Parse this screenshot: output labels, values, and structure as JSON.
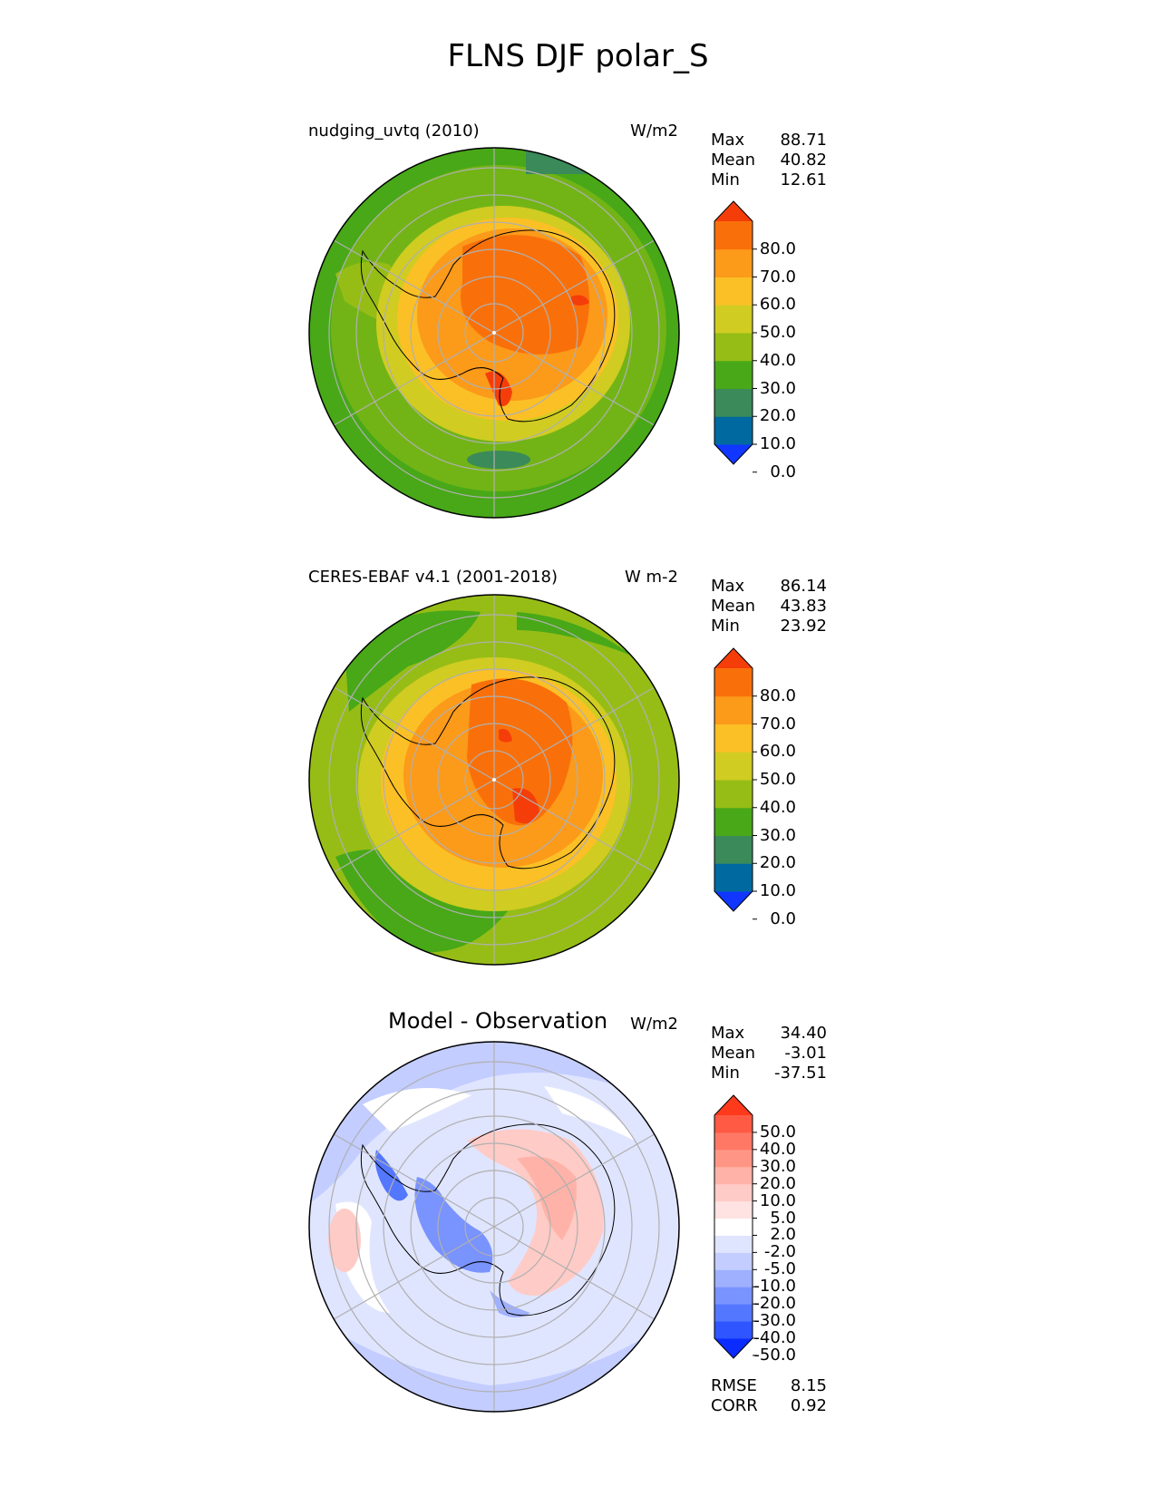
{
  "figure_title": "FLNS DJF polar_S",
  "panels": [
    {
      "title": "nudging_uvtq (2010)",
      "units": "W/m2",
      "stats": [
        {
          "label": "Max",
          "value": "88.71"
        },
        {
          "label": "Mean",
          "value": "40.82"
        },
        {
          "label": "Min",
          "value": "12.61"
        }
      ],
      "colorbar": {
        "ticks": [
          "80.0",
          "70.0",
          "60.0",
          "50.0",
          "40.0",
          "30.0",
          "20.0",
          "10.0",
          "0.0"
        ],
        "colors": [
          "#1036ff",
          "#006aa0",
          "#3a8a5a",
          "#48a818",
          "#96bd16",
          "#d0cc22",
          "#fbc026",
          "#fc9a1a",
          "#f9700a",
          "#f53d0a"
        ]
      }
    },
    {
      "title": "CERES-EBAF v4.1 (2001-2018)",
      "units": "W m-2",
      "stats": [
        {
          "label": "Max",
          "value": "86.14"
        },
        {
          "label": "Mean",
          "value": "43.83"
        },
        {
          "label": "Min",
          "value": "23.92"
        }
      ],
      "colorbar": {
        "ticks": [
          "80.0",
          "70.0",
          "60.0",
          "50.0",
          "40.0",
          "30.0",
          "20.0",
          "10.0",
          "0.0"
        ],
        "colors": [
          "#1036ff",
          "#006aa0",
          "#3a8a5a",
          "#48a818",
          "#96bd16",
          "#d0cc22",
          "#fbc026",
          "#fc9a1a",
          "#f9700a",
          "#f53d0a"
        ]
      }
    },
    {
      "title": "Model - Observation",
      "units": "W/m2",
      "stats": [
        {
          "label": "Max",
          "value": "34.40"
        },
        {
          "label": "Mean",
          "value": "-3.01"
        },
        {
          "label": "Min",
          "value": "-37.51"
        }
      ],
      "colorbar": {
        "ticks": [
          "50.0",
          "40.0",
          "30.0",
          "20.0",
          "10.0",
          "5.0",
          "2.0",
          "-2.0",
          "-5.0",
          "-10.0",
          "-20.0",
          "-30.0",
          "-40.0",
          "-50.0"
        ],
        "colors": [
          "#0a2cff",
          "#2e55ff",
          "#5377ff",
          "#7993ff",
          "#9fb0ff",
          "#c3cdff",
          "#e0e5ff",
          "#ffffff",
          "#ffe2e2",
          "#ffcbc6",
          "#ffb3a8",
          "#ff9685",
          "#ff7866",
          "#ff5a44",
          "#ff3a1c"
        ]
      },
      "metrics": [
        {
          "label": "RMSE",
          "value": "8.15"
        },
        {
          "label": "CORR",
          "value": "0.92"
        }
      ]
    }
  ],
  "map_colors": {
    "grid": "#b0b0b0",
    "coast": "#000000"
  }
}
